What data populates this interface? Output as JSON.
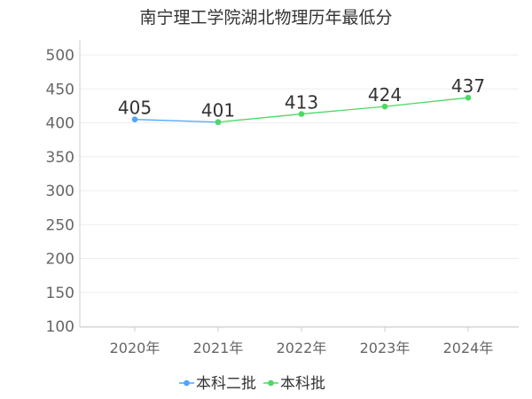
{
  "chart_data": {
    "type": "line",
    "title": "南宁理工学院湖北物理历年最低分",
    "categories": [
      "2020年",
      "2021年",
      "2022年",
      "2023年",
      "2024年"
    ],
    "ylim": [
      100,
      500
    ],
    "yticks": [
      100,
      150,
      200,
      250,
      300,
      350,
      400,
      450,
      500
    ],
    "grid": true,
    "legend_position": "bottom-center",
    "series": [
      {
        "name": "本科二批",
        "color": "#4da6ff",
        "values": [
          405,
          401,
          null,
          null,
          null
        ]
      },
      {
        "name": "本科批",
        "color": "#4cd964",
        "values": [
          null,
          401,
          413,
          424,
          437
        ]
      }
    ],
    "data_labels": [
      {
        "category": "2020年",
        "value": 405,
        "text": "405"
      },
      {
        "category": "2021年",
        "value": 401,
        "text": "401"
      },
      {
        "category": "2022年",
        "value": 413,
        "text": "413"
      },
      {
        "category": "2023年",
        "value": 424,
        "text": "424"
      },
      {
        "category": "2024年",
        "value": 437,
        "text": "437"
      }
    ]
  }
}
